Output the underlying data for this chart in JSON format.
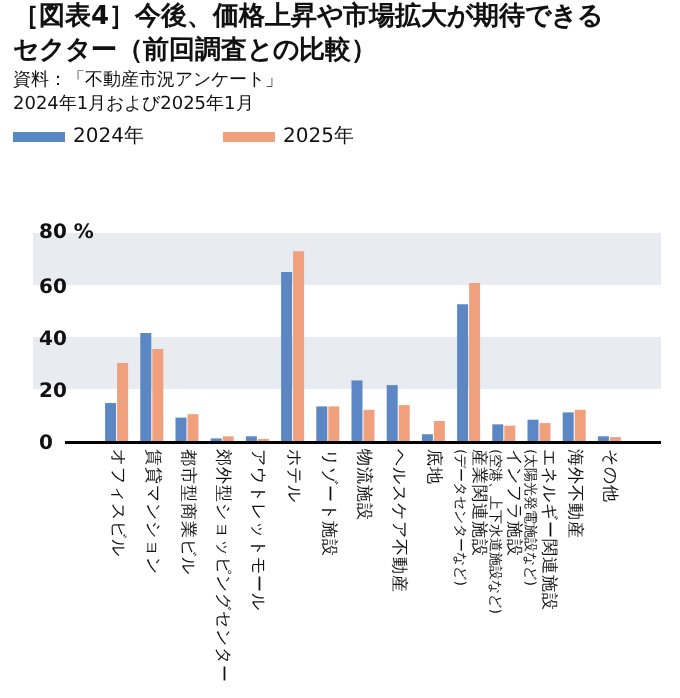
{
  "chart_data": {
    "type": "bar",
    "title": "［図表4］今後、価格上昇や市場拡大が期待できるセクター（前回調査との比較）",
    "annotations": [
      "資料：「不動産市況アンケート」",
      "2024年1月および2025年1月"
    ],
    "categories": [
      "オフィスビル",
      "賃貸マンション",
      "都市型商業ビル",
      "郊外型ショッピングセンター",
      "アウトレットモール",
      "ホテル",
      "リゾート施設",
      "物流施設",
      "ヘルスケア不動産",
      "底地",
      "産業関連施設\n(データセンターなど)",
      "インフラ施設\n(空港、上下水道施設など)",
      "エネルギー関連施設\n(太陽光発電施設など)",
      "海外不動産",
      "その他"
    ],
    "series": [
      {
        "name": "2024年",
        "color": "#5b87c5",
        "values": [
          14.6,
          41.5,
          9,
          1,
          1.8,
          65,
          13.3,
          23.3,
          21.5,
          2.6,
          52.6,
          6.4,
          8.2,
          11,
          1.8
        ]
      },
      {
        "name": "2025年",
        "color": "#f0a07c",
        "values": [
          30,
          35.4,
          10.3,
          1.8,
          0.8,
          73,
          13.3,
          12,
          13.8,
          7.7,
          60.8,
          5.9,
          6.9,
          12,
          1.5
        ]
      }
    ],
    "ylim": [
      0,
      80
    ],
    "yticks": [
      0,
      20,
      40,
      60,
      {
        "value": 80,
        "label": "80 %"
      }
    ],
    "bands": [
      {
        "axis": "y",
        "from": 20,
        "to": 40,
        "color": "#e8ebef"
      },
      {
        "axis": "y",
        "from": 60,
        "to": 80,
        "color": "#e8ebef"
      }
    ],
    "legend": "top"
  }
}
